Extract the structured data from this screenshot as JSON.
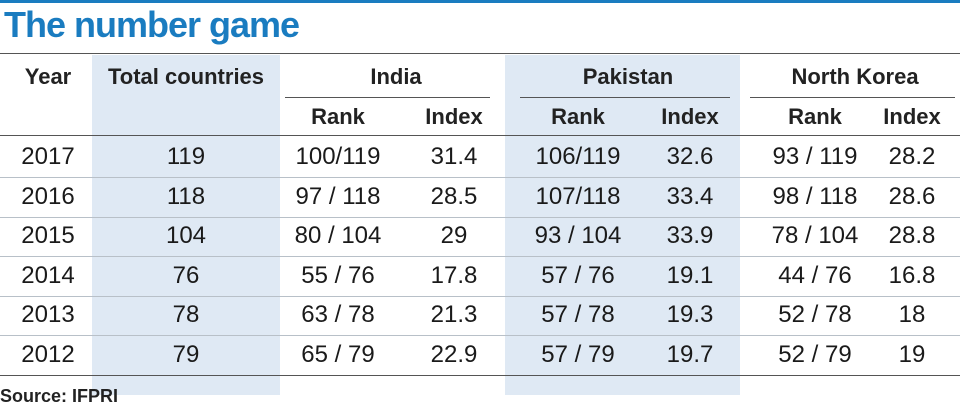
{
  "title": "The number game",
  "header": {
    "year": "Year",
    "total": "Total countries",
    "groups": [
      {
        "name": "India",
        "sub": [
          "Rank",
          "Index"
        ]
      },
      {
        "name": "Pakistan",
        "sub": [
          "Rank",
          "Index"
        ]
      },
      {
        "name": "North Korea",
        "sub": [
          "Rank",
          "Index"
        ]
      }
    ]
  },
  "rows": [
    [
      "2017",
      "119",
      "100/119",
      "31.4",
      "106/119",
      "32.6",
      "93 / 119",
      "28.2"
    ],
    [
      "2016",
      "118",
      "97 / 118",
      "28.5",
      "107/118",
      "33.4",
      "98 / 118",
      "28.6"
    ],
    [
      "2015",
      "104",
      "80 / 104",
      "29",
      "93 / 104",
      "33.9",
      "78 / 104",
      "28.8"
    ],
    [
      "2014",
      "76",
      "55 / 76",
      "17.8",
      "57 / 76",
      "19.1",
      "44 / 76",
      "16.8"
    ],
    [
      "2013",
      "78",
      "63 / 78",
      "21.3",
      "57 / 78",
      "19.3",
      "52 / 78",
      "18"
    ],
    [
      "2012",
      "79",
      "65 / 79",
      "22.9",
      "57 / 79",
      "19.7",
      "52 / 79",
      "19"
    ]
  ],
  "source": "Source: IFPRI"
}
